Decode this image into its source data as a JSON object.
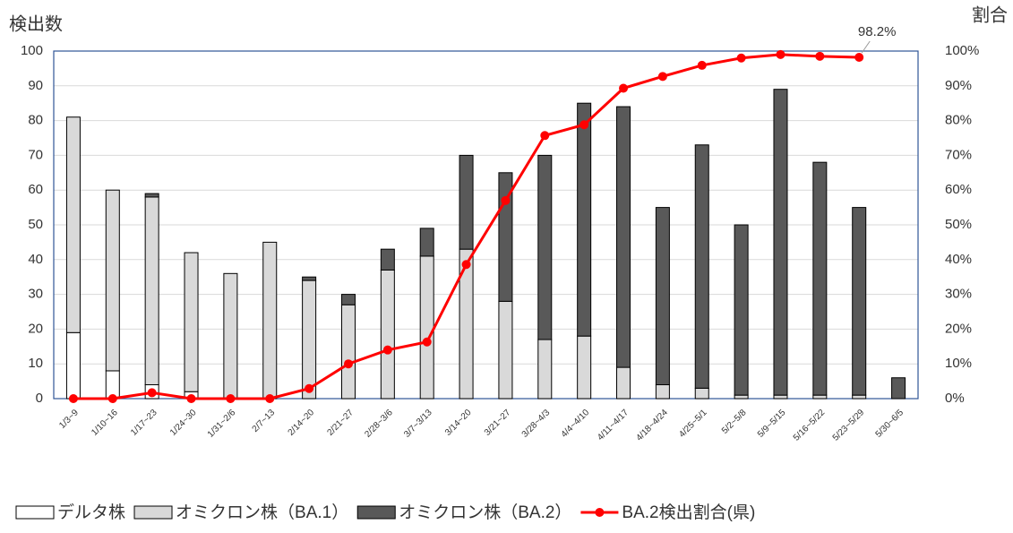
{
  "chart_data": {
    "type": "bar-line",
    "y_title": "検出数",
    "y2_title": "割合",
    "categories": [
      "1/3~9",
      "1/10~16",
      "1/17~23",
      "1/24~30",
      "1/31~2/6",
      "2/7~13",
      "2/14~20",
      "2/21~27",
      "2/28~3/6",
      "3/7~3/13",
      "3/14~20",
      "3/21~27",
      "3/28~4/3",
      "4/4~4/10",
      "4/11~4/17",
      "4/18~4/24",
      "4/25~5/1",
      "5/2~5/8",
      "5/9~5/15",
      "5/16~5/22",
      "5/23~5/29",
      "5/30~6/5"
    ],
    "series": [
      {
        "name": "デルタ株",
        "type": "bar",
        "color": "#ffffff",
        "values": [
          19,
          8,
          4,
          2,
          0,
          0,
          0,
          0,
          0,
          0,
          0,
          0,
          0,
          0,
          0,
          0,
          0,
          0,
          0,
          0,
          0,
          0
        ]
      },
      {
        "name": "オミクロン株（BA.1）",
        "type": "bar",
        "color": "#d9d9d9",
        "values": [
          62,
          52,
          54,
          40,
          36,
          45,
          34,
          27,
          37,
          41,
          43,
          28,
          17,
          18,
          9,
          4,
          3,
          1,
          1,
          1,
          1,
          0
        ]
      },
      {
        "name": "オミクロン株（BA.2）",
        "type": "bar",
        "color": "#595959",
        "values": [
          0,
          0,
          1,
          0,
          0,
          0,
          1,
          3,
          6,
          8,
          27,
          37,
          53,
          67,
          75,
          51,
          70,
          49,
          88,
          67,
          54,
          6
        ]
      },
      {
        "name": "BA.2検出割合(県)",
        "type": "line",
        "axis": "y2",
        "color": "#ff0000",
        "values": [
          0,
          0,
          1.7,
          0,
          0,
          0,
          2.9,
          10,
          14,
          16.3,
          38.6,
          57,
          75.7,
          78.8,
          89.3,
          92.7,
          95.9,
          98,
          99,
          98.5,
          98.2,
          null
        ],
        "value_labels": [
          null,
          null,
          null,
          null,
          null,
          null,
          null,
          null,
          null,
          null,
          null,
          null,
          null,
          null,
          null,
          null,
          null,
          null,
          null,
          null,
          "98.2%",
          null
        ]
      }
    ],
    "ylim": [
      0,
      100
    ],
    "yticks": [
      0,
      10,
      20,
      30,
      40,
      50,
      60,
      70,
      80,
      90,
      100
    ],
    "y2lim": [
      0,
      100
    ],
    "y2ticks": [
      {
        "value": 0,
        "label": "0%"
      },
      {
        "value": 10,
        "label": "10%"
      },
      {
        "value": 20,
        "label": "20%"
      },
      {
        "value": 30,
        "label": "30%"
      },
      {
        "value": 40,
        "label": "40%"
      },
      {
        "value": 50,
        "label": "50%"
      },
      {
        "value": 60,
        "label": "60%"
      },
      {
        "value": 70,
        "label": "70%"
      },
      {
        "value": 80,
        "label": "80%"
      },
      {
        "value": 90,
        "label": "90%"
      },
      {
        "value": 100,
        "label": "100%"
      }
    ],
    "grid": true,
    "legend": "bottom"
  }
}
